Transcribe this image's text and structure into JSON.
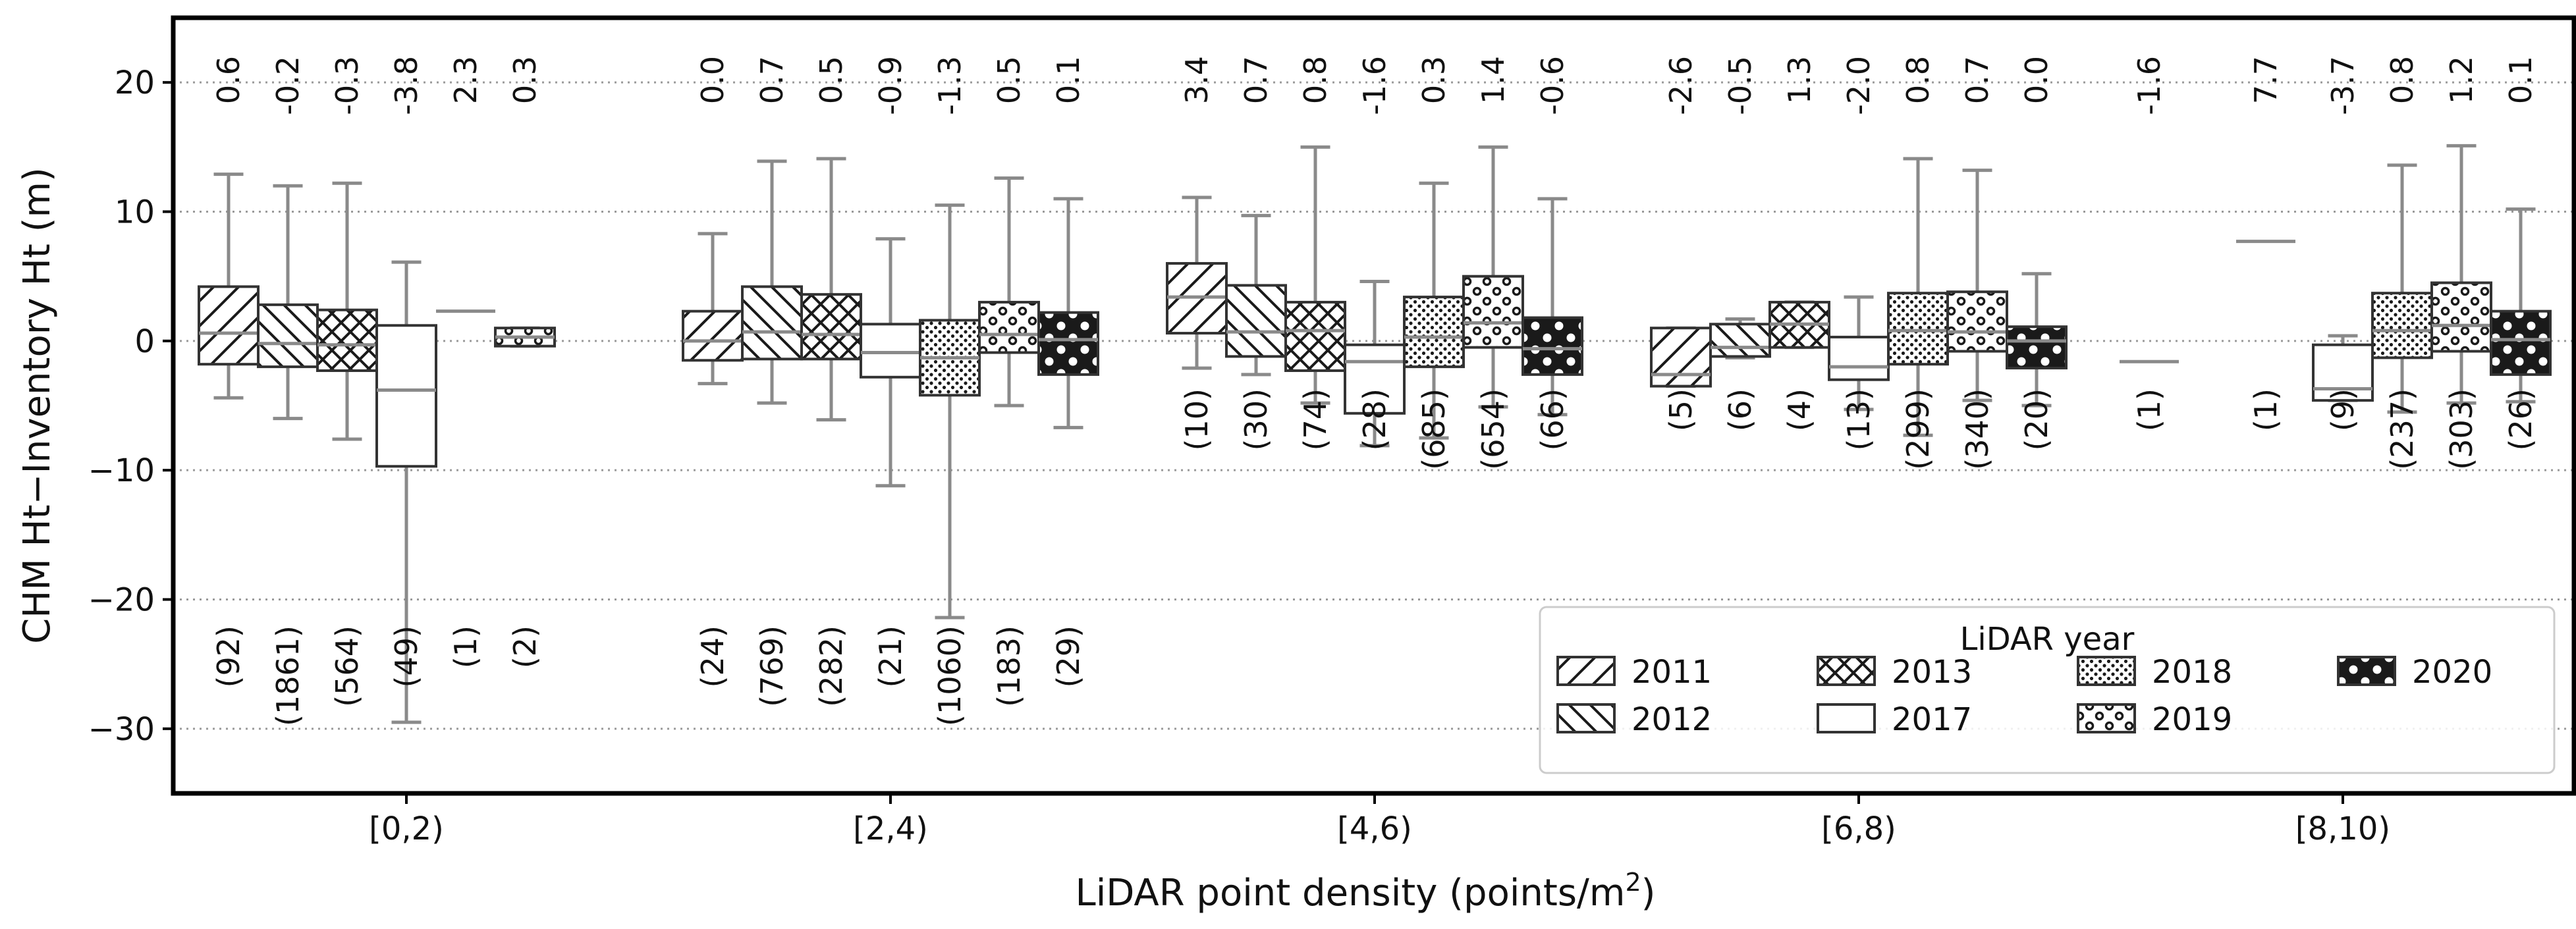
{
  "chart_data": {
    "type": "box",
    "title": "",
    "xlabel": "LiDAR point density (points/m",
    "xlabel_sup": "2",
    "xlabel_close": ")",
    "ylabel": "CHM Ht−Inventory Ht (m)",
    "ylim": [
      -35,
      25
    ],
    "yticks": [
      20,
      10,
      0,
      -10,
      -20,
      -30
    ],
    "ytick_labels": [
      "20",
      "10",
      "0",
      "−10",
      "−20",
      "−30"
    ],
    "grid": "horizontal dotted",
    "categories": [
      "[0,2)",
      "[2,4)",
      "[4,6)",
      "[6,8)",
      "[8,10)"
    ],
    "legend": {
      "title": "LiDAR year",
      "placement": "lower-right",
      "entries": [
        {
          "label": "2011",
          "pattern": "diag"
        },
        {
          "label": "2012",
          "pattern": "backdiag"
        },
        {
          "label": "2013",
          "pattern": "cross"
        },
        {
          "label": "2017",
          "pattern": "plain"
        },
        {
          "label": "2018",
          "pattern": "dots"
        },
        {
          "label": "2019",
          "pattern": "circles"
        },
        {
          "label": "2020",
          "pattern": "bigcircles"
        }
      ]
    },
    "series": [
      {
        "name": "2011",
        "pattern": "diag",
        "boxes": [
          {
            "category": "[0,2)",
            "whislo": -4.4,
            "q1": -1.8,
            "median": 0.6,
            "q3": 4.2,
            "whishi": 12.9,
            "mean_label": "0.6",
            "count_label": "(92)"
          },
          {
            "category": "[2,4)",
            "whislo": -3.3,
            "q1": -1.5,
            "median": 0.0,
            "q3": 2.3,
            "whishi": 8.3,
            "mean_label": "0.0",
            "count_label": "(24)"
          },
          {
            "category": "[4,6)",
            "whislo": -2.1,
            "q1": 0.6,
            "median": 3.4,
            "q3": 6.0,
            "whishi": 11.1,
            "mean_label": "3.4",
            "count_label": "(10)"
          },
          {
            "category": "[6,8)",
            "whislo": -3.5,
            "q1": -3.5,
            "median": -2.6,
            "q3": 1.0,
            "whishi": 1.0,
            "mean_label": "-2.6",
            "count_label": "(5)"
          }
        ]
      },
      {
        "name": "2012",
        "pattern": "backdiag",
        "boxes": [
          {
            "category": "[0,2)",
            "whislo": -6.0,
            "q1": -2.0,
            "median": -0.2,
            "q3": 2.8,
            "whishi": 12.0,
            "mean_label": "-0.2",
            "count_label": "(1861)"
          },
          {
            "category": "[2,4)",
            "whislo": -4.8,
            "q1": -1.4,
            "median": 0.7,
            "q3": 4.2,
            "whishi": 13.9,
            "mean_label": "0.7",
            "count_label": "(769)"
          },
          {
            "category": "[4,6)",
            "whislo": -2.6,
            "q1": -1.2,
            "median": 0.7,
            "q3": 4.3,
            "whishi": 9.7,
            "mean_label": "0.7",
            "count_label": "(30)"
          },
          {
            "category": "[6,8)",
            "whislo": -1.3,
            "q1": -1.2,
            "median": -0.5,
            "q3": 1.3,
            "whishi": 1.7,
            "mean_label": "-0.5",
            "count_label": "(6)"
          }
        ]
      },
      {
        "name": "2013",
        "pattern": "cross",
        "boxes": [
          {
            "category": "[0,2)",
            "whislo": -7.6,
            "q1": -2.3,
            "median": -0.3,
            "q3": 2.4,
            "whishi": 12.2,
            "mean_label": "-0.3",
            "count_label": "(564)"
          },
          {
            "category": "[2,4)",
            "whislo": -6.1,
            "q1": -1.4,
            "median": 0.5,
            "q3": 3.6,
            "whishi": 14.1,
            "mean_label": "0.5",
            "count_label": "(282)"
          },
          {
            "category": "[4,6)",
            "whislo": -4.8,
            "q1": -2.3,
            "median": 0.8,
            "q3": 3.0,
            "whishi": 15.0,
            "mean_label": "0.8",
            "count_label": "(74)"
          },
          {
            "category": "[6,8)",
            "whislo": -0.5,
            "q1": -0.5,
            "median": 1.3,
            "q3": 3.0,
            "whishi": 3.0,
            "mean_label": "1.3",
            "count_label": "(4)"
          }
        ]
      },
      {
        "name": "2017",
        "pattern": "plain",
        "boxes": [
          {
            "category": "[0,2)",
            "whislo": -29.5,
            "q1": -9.7,
            "median": -3.8,
            "q3": 1.2,
            "whishi": 6.1,
            "mean_label": "-3.8",
            "count_label": "(49)"
          },
          {
            "category": "[2,4)",
            "whislo": -11.2,
            "q1": -2.8,
            "median": -0.9,
            "q3": 1.3,
            "whishi": 7.9,
            "mean_label": "-0.9",
            "count_label": "(21)"
          },
          {
            "category": "[4,6)",
            "whislo": -8.1,
            "q1": -5.6,
            "median": -1.6,
            "q3": -0.3,
            "whishi": 4.6,
            "mean_label": "-1.6",
            "count_label": "(28)"
          },
          {
            "category": "[6,8)",
            "whislo": -5.3,
            "q1": -3.0,
            "median": -2.0,
            "q3": 0.3,
            "whishi": 3.4,
            "mean_label": "-2.0",
            "count_label": "(13)"
          },
          {
            "category": "[8,10)",
            "whislo": -4.6,
            "q1": -4.6,
            "median": -3.7,
            "q3": -0.3,
            "whishi": 0.4,
            "mean_label": "-3.7",
            "count_label": "(9)"
          }
        ]
      },
      {
        "name": "2018",
        "pattern": "dots",
        "boxes": [
          {
            "category": "[0,2)",
            "whislo": 2.3,
            "q1": 2.3,
            "median": 2.3,
            "q3": 2.3,
            "whishi": 2.3,
            "mean_label": "2.3",
            "count_label": "(1)"
          },
          {
            "category": "[2,4)",
            "whislo": -21.4,
            "q1": -4.2,
            "median": -1.3,
            "q3": 1.6,
            "whishi": 10.5,
            "mean_label": "-1.3",
            "count_label": "(1060)"
          },
          {
            "category": "[4,6)",
            "whislo": -7.5,
            "q1": -2.0,
            "median": 0.3,
            "q3": 3.4,
            "whishi": 12.2,
            "mean_label": "0.3",
            "count_label": "(685)"
          },
          {
            "category": "[6,8)",
            "whislo": -7.3,
            "q1": -1.8,
            "median": 0.8,
            "q3": 3.7,
            "whishi": 14.1,
            "mean_label": "0.8",
            "count_label": "(299)"
          },
          {
            "category": "[8,10)",
            "whislo": -5.5,
            "q1": -1.3,
            "median": 0.8,
            "q3": 3.7,
            "whishi": 13.6,
            "mean_label": "0.8",
            "count_label": "(237)"
          }
        ]
      },
      {
        "name": "2019",
        "pattern": "circles",
        "boxes": [
          {
            "category": "[0,2)",
            "whislo": -0.4,
            "q1": -0.4,
            "median": 0.3,
            "q3": 1.0,
            "whishi": 1.0,
            "mean_label": "0.3",
            "count_label": "(2)"
          },
          {
            "category": "[2,4)",
            "whislo": -5.0,
            "q1": -0.9,
            "median": 0.5,
            "q3": 3.0,
            "whishi": 12.6,
            "mean_label": "0.5",
            "count_label": "(183)"
          },
          {
            "category": "[4,6)",
            "whislo": -5.1,
            "q1": -0.5,
            "median": 1.4,
            "q3": 5.0,
            "whishi": 15.0,
            "mean_label": "1.4",
            "count_label": "(654)"
          },
          {
            "category": "[6,8)",
            "whislo": -4.6,
            "q1": -0.8,
            "median": 0.7,
            "q3": 3.8,
            "whishi": 13.2,
            "mean_label": "0.7",
            "count_label": "(340)"
          },
          {
            "category": "[8,10)",
            "whislo": -4.8,
            "q1": -0.8,
            "median": 1.2,
            "q3": 4.5,
            "whishi": 15.1,
            "mean_label": "1.2",
            "count_label": "(303)"
          }
        ]
      },
      {
        "name": "2020",
        "pattern": "bigcircles",
        "boxes": [
          {
            "category": "[2,4)",
            "whislo": -6.7,
            "q1": -2.6,
            "median": 0.1,
            "q3": 2.2,
            "whishi": 11.0,
            "mean_label": "0.1",
            "count_label": "(29)"
          },
          {
            "category": "[4,6)",
            "whislo": -5.7,
            "q1": -2.6,
            "median": -0.6,
            "q3": 1.8,
            "whishi": 11.0,
            "mean_label": "-0.6",
            "count_label": "(66)"
          },
          {
            "category": "[6,8)",
            "whislo": -5.0,
            "q1": -2.1,
            "median": 0.0,
            "q3": 1.1,
            "whishi": 5.2,
            "mean_label": "0.0",
            "count_label": "(20)"
          },
          {
            "category": "[8,10)",
            "whislo": -4.7,
            "q1": -2.6,
            "median": 0.1,
            "q3": 2.3,
            "whishi": 10.2,
            "mean_label": "0.1",
            "count_label": "(26)"
          }
        ]
      },
      {
        "name": "single-point",
        "pattern": "none",
        "boxes": [
          {
            "category": "[6,8)",
            "whislo": -1.6,
            "q1": -1.6,
            "median": -1.6,
            "q3": -1.6,
            "whishi": -1.6,
            "mean_label": "-1.6",
            "count_label": "(1)"
          },
          {
            "category": "[8,10)",
            "whislo": 7.7,
            "q1": 7.7,
            "median": 7.7,
            "q3": 7.7,
            "whishi": 7.7,
            "mean_label": "7.7",
            "count_label": "(1)"
          }
        ]
      }
    ]
  }
}
